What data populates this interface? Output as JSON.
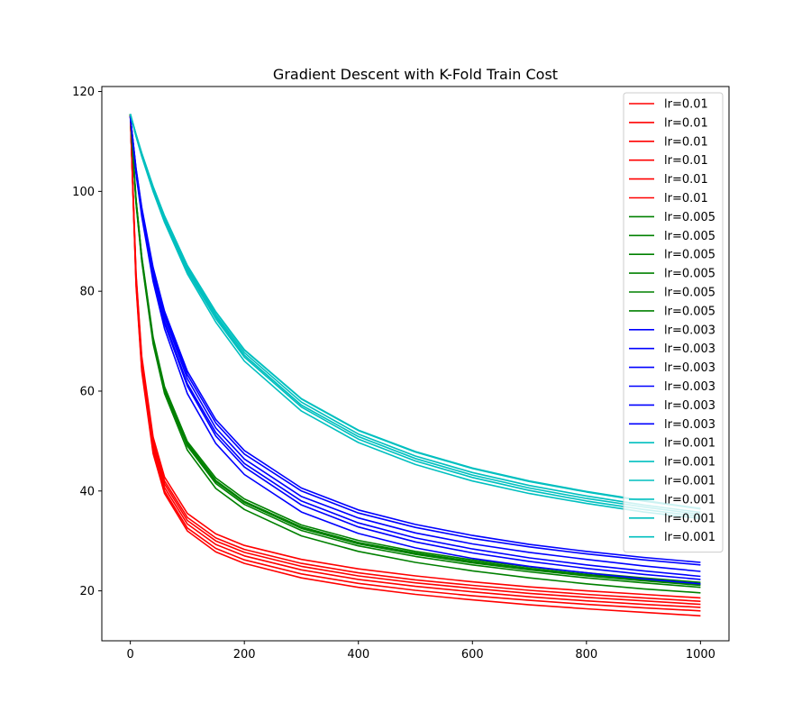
{
  "chart_data": {
    "type": "line",
    "title": "Gradient Descent with K-Fold Train Cost",
    "xlabel": "",
    "ylabel": "",
    "xlim": [
      -50,
      1050
    ],
    "ylim": [
      10,
      121
    ],
    "xticks": [
      0,
      200,
      400,
      600,
      800,
      1000
    ],
    "yticks": [
      20,
      40,
      60,
      80,
      100,
      120
    ],
    "legend_placement": "top-right",
    "grid": false,
    "x": [
      0,
      10,
      20,
      40,
      60,
      100,
      150,
      200,
      300,
      400,
      500,
      600,
      700,
      800,
      900,
      1000
    ],
    "groups": [
      {
        "label": "lr=0.01",
        "color": "#ff0000",
        "initial": 115.5,
        "series": [
          {
            "name": "lr=0.01",
            "values": [
              115.5,
              81.0,
              64.0,
              47.5,
              39.5,
              32.0,
              27.8,
              25.5,
              22.6,
              20.7,
              19.3,
              18.2,
              17.2,
              16.4,
              15.7,
              15.0
            ]
          },
          {
            "name": "lr=0.01",
            "values": [
              115.5,
              81.5,
              64.5,
              48.0,
              40.0,
              32.6,
              28.5,
              26.2,
              23.4,
              21.5,
              20.1,
              19.0,
              18.1,
              17.3,
              16.6,
              16.0
            ]
          },
          {
            "name": "lr=0.01",
            "values": [
              115.5,
              82.0,
              65.2,
              48.7,
              40.7,
              33.4,
              29.3,
              27.0,
              24.2,
              22.3,
              20.9,
              19.8,
              18.8,
              18.0,
              17.3,
              16.7
            ]
          },
          {
            "name": "lr=0.01",
            "values": [
              115.5,
              82.5,
              65.8,
              49.4,
              41.4,
              34.1,
              30.0,
              27.7,
              24.9,
              23.0,
              21.6,
              20.5,
              19.5,
              18.7,
              18.0,
              17.3
            ]
          },
          {
            "name": "lr=0.01",
            "values": [
              115.5,
              83.0,
              66.4,
              50.0,
              42.0,
              34.7,
              30.6,
              28.3,
              25.5,
              23.6,
              22.2,
              21.1,
              20.1,
              19.3,
              18.6,
              17.9
            ]
          },
          {
            "name": "lr=0.01",
            "values": [
              115.5,
              83.5,
              67.0,
              50.8,
              42.8,
              35.5,
              31.4,
              29.1,
              26.3,
              24.4,
              23.0,
              21.8,
              20.8,
              20.0,
              19.3,
              18.6
            ]
          }
        ]
      },
      {
        "label": "lr=0.005",
        "color": "#008000",
        "initial": 115.5,
        "series": [
          {
            "name": "lr=0.005",
            "values": [
              115.5,
              97.5,
              86.0,
              69.5,
              59.5,
              48.2,
              40.5,
              36.3,
              31.0,
              27.9,
              25.7,
              24.0,
              22.6,
              21.4,
              20.4,
              19.6
            ]
          },
          {
            "name": "lr=0.005",
            "values": [
              115.5,
              97.8,
              86.3,
              70.0,
              60.0,
              49.0,
              41.5,
              37.3,
              32.1,
              29.0,
              26.9,
              25.2,
              23.8,
              22.6,
              21.6,
              20.7
            ]
          },
          {
            "name": "lr=0.005",
            "values": [
              115.5,
              98.0,
              86.5,
              70.2,
              60.3,
              49.3,
              41.9,
              37.7,
              32.5,
              29.4,
              27.3,
              25.6,
              24.2,
              23.0,
              22.0,
              21.1
            ]
          },
          {
            "name": "lr=0.005",
            "values": [
              115.5,
              98.1,
              86.6,
              70.3,
              60.4,
              49.4,
              42.0,
              37.8,
              32.7,
              29.6,
              27.5,
              25.8,
              24.4,
              23.2,
              22.2,
              21.3
            ]
          },
          {
            "name": "lr=0.005",
            "values": [
              115.5,
              98.2,
              86.7,
              70.4,
              60.5,
              49.5,
              42.1,
              37.9,
              32.8,
              29.7,
              27.6,
              25.9,
              24.5,
              23.3,
              22.3,
              21.4
            ]
          },
          {
            "name": "lr=0.005",
            "values": [
              115.5,
              98.4,
              87.0,
              70.8,
              60.9,
              49.9,
              42.6,
              38.4,
              33.2,
              30.1,
              27.9,
              26.2,
              24.8,
              23.6,
              22.6,
              21.7
            ]
          }
        ]
      },
      {
        "label": "lr=0.003",
        "color": "#0000ff",
        "initial": 115.0,
        "series": [
          {
            "name": "lr=0.003",
            "values": [
              115.0,
              103.5,
              95.0,
              82.0,
              72.5,
              59.5,
              49.5,
              43.3,
              35.8,
              31.5,
              28.6,
              26.5,
              24.9,
              23.6,
              22.4,
              21.4
            ]
          },
          {
            "name": "lr=0.003",
            "values": [
              115.0,
              103.8,
              95.5,
              82.8,
              73.5,
              61.0,
              51.0,
              44.8,
              37.2,
              32.8,
              29.8,
              27.6,
              25.9,
              24.5,
              23.3,
              22.3
            ]
          },
          {
            "name": "lr=0.003",
            "values": [
              115.0,
              104.0,
              95.8,
              83.2,
              74.0,
              61.5,
              51.7,
              45.5,
              38.0,
              33.6,
              30.6,
              28.4,
              26.6,
              25.2,
              24.0,
              22.9
            ]
          },
          {
            "name": "lr=0.003",
            "values": [
              115.0,
              104.2,
              96.2,
              83.8,
              74.8,
              62.5,
              52.6,
              46.4,
              38.9,
              34.6,
              31.6,
              29.4,
              27.7,
              26.3,
              25.0,
              23.9
            ]
          },
          {
            "name": "lr=0.003",
            "values": [
              115.0,
              104.4,
              96.5,
              84.3,
              75.4,
              63.3,
              53.6,
              47.4,
              40.0,
              35.6,
              32.7,
              30.5,
              28.8,
              27.4,
              26.2,
              25.2
            ]
          },
          {
            "name": "lr=0.003",
            "values": [
              115.0,
              104.6,
              96.8,
              84.8,
              76.0,
              64.0,
              54.3,
              48.1,
              40.6,
              36.2,
              33.3,
              31.1,
              29.3,
              27.9,
              26.7,
              25.7
            ]
          }
        ]
      },
      {
        "label": "lr=0.001",
        "color": "#00bfbf",
        "initial": 115.5,
        "series": [
          {
            "name": "lr=0.001",
            "values": [
              115.5,
              111.0,
              107.0,
              100.0,
              93.8,
              83.5,
              73.8,
              66.0,
              56.0,
              49.7,
              45.3,
              42.0,
              39.5,
              37.5,
              35.8,
              34.5
            ]
          },
          {
            "name": "lr=0.001",
            "values": [
              115.5,
              111.1,
              107.2,
              100.3,
              94.2,
              84.0,
              74.5,
              66.8,
              56.8,
              50.4,
              46.0,
              42.7,
              40.1,
              38.0,
              36.3,
              34.9
            ]
          },
          {
            "name": "lr=0.001",
            "values": [
              115.5,
              111.2,
              107.3,
              100.5,
              94.4,
              84.3,
              74.9,
              67.2,
              57.2,
              50.9,
              46.5,
              43.2,
              40.6,
              38.5,
              36.8,
              35.3
            ]
          },
          {
            "name": "lr=0.001",
            "values": [
              115.5,
              111.3,
              107.5,
              100.7,
              94.7,
              84.7,
              75.3,
              67.7,
              57.8,
              51.4,
              47.0,
              43.7,
              41.1,
              39.0,
              37.2,
              35.7
            ]
          },
          {
            "name": "lr=0.001",
            "values": [
              115.5,
              111.4,
              107.6,
              100.9,
              95.0,
              85.1,
              75.8,
              68.2,
              58.4,
              52.1,
              47.8,
              44.5,
              41.9,
              39.8,
              38.0,
              36.4
            ]
          },
          {
            "name": "lr=0.001",
            "values": [
              115.5,
              111.4,
              107.7,
              101.0,
              95.1,
              85.2,
              75.9,
              68.3,
              58.5,
              52.2,
              47.9,
              44.6,
              42.0,
              39.9,
              38.1,
              36.5
            ]
          }
        ]
      }
    ],
    "legend_entries": [
      "lr=0.01",
      "lr=0.01",
      "lr=0.01",
      "lr=0.01",
      "lr=0.01",
      "lr=0.01",
      "lr=0.005",
      "lr=0.005",
      "lr=0.005",
      "lr=0.005",
      "lr=0.005",
      "lr=0.005",
      "lr=0.003",
      "lr=0.003",
      "lr=0.003",
      "lr=0.003",
      "lr=0.003",
      "lr=0.003",
      "lr=0.001",
      "lr=0.001",
      "lr=0.001",
      "lr=0.001",
      "lr=0.001",
      "lr=0.001"
    ]
  }
}
